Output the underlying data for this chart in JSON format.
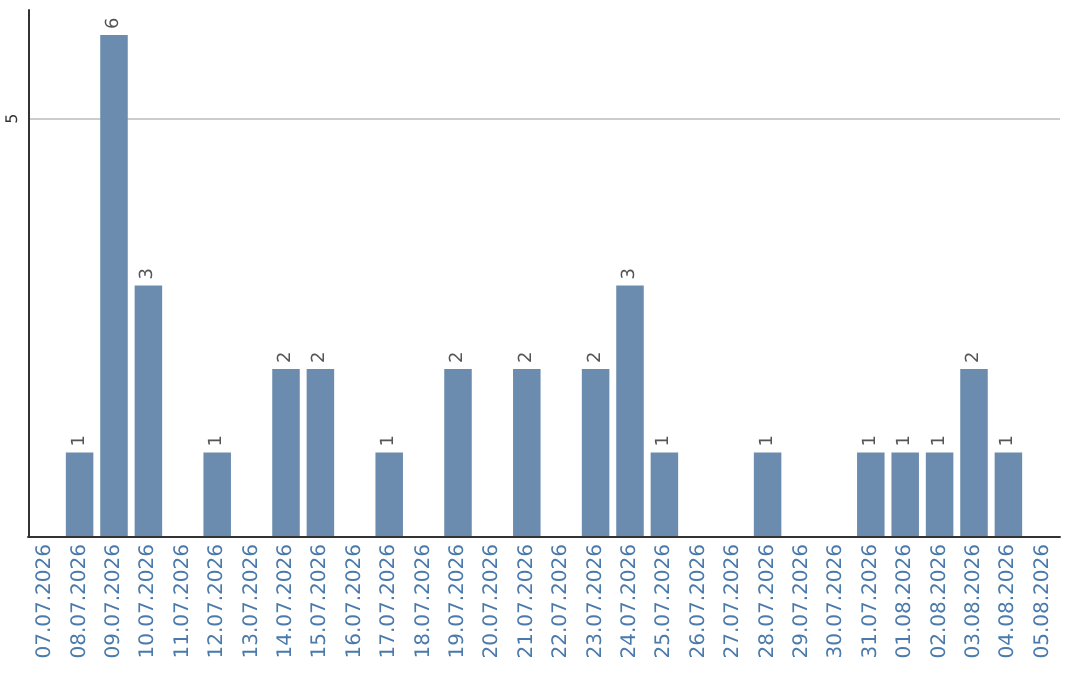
{
  "chart_data": {
    "type": "bar",
    "categories": [
      "07.07.2026",
      "08.07.2026",
      "09.07.2026",
      "10.07.2026",
      "11.07.2026",
      "12.07.2026",
      "13.07.2026",
      "14.07.2026",
      "15.07.2026",
      "16.07.2026",
      "17.07.2026",
      "18.07.2026",
      "19.07.2026",
      "20.07.2026",
      "21.07.2026",
      "22.07.2026",
      "23.07.2026",
      "24.07.2026",
      "25.07.2026",
      "26.07.2026",
      "27.07.2026",
      "28.07.2026",
      "29.07.2026",
      "30.07.2026",
      "31.07.2026",
      "01.08.2026",
      "02.08.2026",
      "03.08.2026",
      "04.08.2026",
      "05.08.2026"
    ],
    "values": [
      0,
      1,
      6,
      3,
      0,
      1,
      0,
      2,
      2,
      0,
      1,
      0,
      2,
      0,
      2,
      0,
      2,
      3,
      1,
      0,
      0,
      1,
      0,
      0,
      1,
      1,
      1,
      2,
      1,
      0
    ],
    "value_labels": [
      null,
      "1",
      "6",
      "3",
      null,
      "1",
      null,
      "2",
      "2",
      null,
      "1",
      null,
      "2",
      null,
      "2",
      null,
      "2",
      "3",
      "1",
      null,
      null,
      "1",
      null,
      null,
      "1",
      "1",
      "1",
      "2",
      "1",
      null
    ],
    "color": "#6b8cae",
    "ylim": [
      0,
      6.3
    ],
    "yticks": [
      5
    ],
    "grid": "y"
  }
}
